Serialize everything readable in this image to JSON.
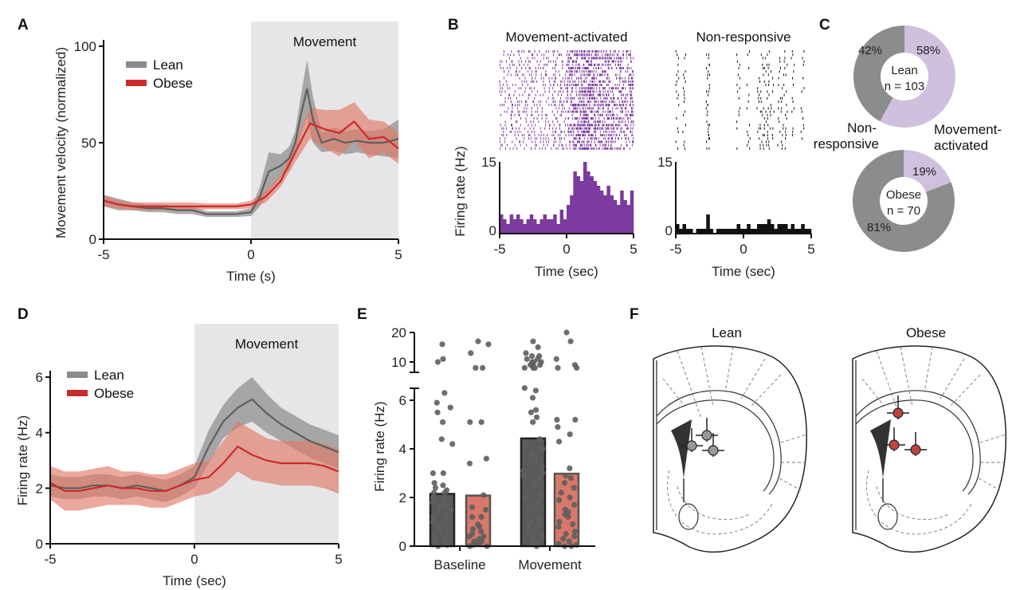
{
  "colors": {
    "lean": "#5f5f5f",
    "lean_band": "#8a8a8a",
    "obese": "#cc2a2a",
    "obese_band": "#e07a66",
    "movement_shade": "#e6e6e8",
    "purple": "#7b3a9e",
    "light_purple": "#cfc0dd",
    "nonresp_gray": "#8c8c8c",
    "lean_bar": "#5a5a5a",
    "obese_bar": "#d9786a"
  },
  "panels": {
    "A": "A",
    "B": "B",
    "C": "C",
    "D": "D",
    "E": "E",
    "F": "F"
  },
  "chart_data": [
    {
      "id": "A",
      "type": "line",
      "shaded_region": {
        "label": "Movement",
        "x": [
          0,
          5
        ]
      },
      "xlabel": "Time (s)",
      "ylabel": "Movement velocity (normalized)",
      "xlim": [
        -5,
        5
      ],
      "ylim": [
        0,
        100
      ],
      "xticks": [
        "-5",
        "0",
        "5"
      ],
      "yticks": [
        "0",
        "50",
        "100"
      ],
      "legend_placement": "top-left",
      "grid": false,
      "series": [
        {
          "name": "Lean",
          "x": [
            -5,
            -4.5,
            -4,
            -3.5,
            -3,
            -2.5,
            -2,
            -1.5,
            -1,
            -0.5,
            0,
            0.3,
            0.6,
            1,
            1.3,
            1.5,
            1.7,
            1.9,
            2.1,
            2.4,
            2.8,
            3.2,
            3.6,
            4,
            4.5,
            5
          ],
          "y": [
            20,
            18,
            17,
            16,
            16,
            15,
            15,
            13,
            13,
            13,
            14,
            22,
            35,
            38,
            42,
            50,
            65,
            78,
            62,
            50,
            52,
            50,
            51,
            50,
            50,
            52
          ],
          "err": [
            3,
            3,
            2,
            2,
            2,
            2,
            2,
            1.5,
            1.5,
            1.5,
            2,
            5,
            10,
            6,
            6,
            6,
            10,
            15,
            12,
            5,
            6,
            6,
            6,
            6,
            7,
            10
          ]
        },
        {
          "name": "Obese",
          "x": [
            -5,
            -4.5,
            -4,
            -3.5,
            -3,
            -2.5,
            -2,
            -1.5,
            -1,
            -0.5,
            0,
            0.5,
            1,
            1.5,
            2,
            2.5,
            3,
            3.5,
            4,
            4.5,
            5
          ],
          "y": [
            20,
            18,
            17,
            17,
            17,
            17,
            17,
            17,
            17,
            17,
            18,
            22,
            30,
            45,
            60,
            57,
            55,
            61,
            52,
            53,
            47
          ],
          "err": [
            3,
            2,
            2,
            2,
            2,
            2,
            2,
            1.5,
            1.5,
            1.5,
            2,
            3,
            3,
            5,
            8,
            10,
            12,
            10,
            10,
            8,
            8
          ]
        }
      ]
    },
    {
      "id": "B",
      "type": "bar",
      "ylabel": "Firing rate (Hz)",
      "xlabel": "Time (sec)",
      "xlim": [
        -5,
        5
      ],
      "ylim": [
        0,
        15
      ],
      "xticks": [
        "-5",
        "0",
        "5"
      ],
      "yticks": [
        "0",
        "15"
      ],
      "bin_width": 0.25,
      "units": [
        {
          "title": "Movement-activated",
          "values": [
            4,
            3,
            2,
            4,
            3,
            4,
            3,
            2,
            3,
            4,
            3,
            2,
            3,
            4,
            3,
            3,
            4,
            2,
            5,
            3,
            6,
            8,
            13,
            12,
            11,
            15,
            13,
            12,
            11,
            10,
            9,
            8,
            10,
            8,
            7,
            6,
            9,
            7,
            6,
            9
          ]
        },
        {
          "title": "Non-responsive",
          "values": [
            2,
            1,
            2,
            1,
            1,
            0,
            1,
            1,
            1,
            4,
            1,
            0,
            1,
            1,
            1,
            1,
            1,
            1,
            2,
            1,
            1,
            2,
            1,
            1,
            2,
            2,
            2,
            3,
            2,
            1,
            2,
            2,
            2,
            1,
            2,
            1,
            1,
            2,
            1,
            1
          ]
        }
      ]
    },
    {
      "id": "C",
      "type": "pie",
      "categories": [
        "Non-responsive",
        "Movement-activated"
      ],
      "category_labels": {
        "nonresp_1": "Non-",
        "nonresp_2": "responsive",
        "move_1": "Movement-",
        "move_2": "activated"
      },
      "groups": [
        {
          "name": "Lean",
          "n_label": "n = 103",
          "values": [
            42,
            58
          ],
          "labels": [
            "42%",
            "58%"
          ]
        },
        {
          "name": "Obese",
          "n_label": "n = 70",
          "values": [
            81,
            19
          ],
          "labels": [
            "81%",
            "19%"
          ]
        }
      ]
    },
    {
      "id": "D",
      "type": "line",
      "shaded_region": {
        "label": "Movement",
        "x": [
          0,
          5
        ]
      },
      "xlabel": "Time (sec)",
      "ylabel": "Firing rate (Hz)",
      "xlim": [
        -5,
        5
      ],
      "ylim": [
        0,
        6.5
      ],
      "xticks": [
        "-5",
        "0",
        "5"
      ],
      "yticks": [
        "0",
        "2",
        "4",
        "6"
      ],
      "legend_placement": "top-left",
      "grid": false,
      "series": [
        {
          "name": "Lean",
          "x": [
            -5,
            -4.5,
            -4,
            -3.5,
            -3,
            -2.5,
            -2,
            -1.5,
            -1,
            -0.5,
            0,
            0.5,
            1,
            1.5,
            2,
            2.5,
            3,
            3.5,
            4,
            4.5,
            5
          ],
          "y": [
            2.1,
            2.0,
            2.0,
            2.1,
            2.1,
            2.0,
            2.1,
            2.0,
            1.9,
            2.1,
            2.4,
            3.5,
            4.4,
            4.9,
            5.2,
            4.7,
            4.3,
            4.0,
            3.7,
            3.5,
            3.3
          ],
          "err": [
            0.4,
            0.4,
            0.4,
            0.4,
            0.4,
            0.4,
            0.4,
            0.4,
            0.4,
            0.4,
            0.4,
            0.6,
            0.6,
            0.7,
            0.8,
            0.7,
            0.6,
            0.6,
            0.6,
            0.6,
            0.6
          ]
        },
        {
          "name": "Obese",
          "x": [
            -5,
            -4.5,
            -4,
            -3.5,
            -3,
            -2.5,
            -2,
            -1.5,
            -1,
            -0.5,
            0,
            0.5,
            1,
            1.5,
            2,
            2.5,
            3,
            3.5,
            4,
            4.5,
            5
          ],
          "y": [
            2.2,
            1.9,
            1.9,
            2.0,
            2.1,
            2.0,
            2.0,
            1.9,
            1.9,
            2.1,
            2.3,
            2.4,
            2.9,
            3.5,
            3.2,
            3.0,
            2.9,
            2.9,
            2.9,
            2.8,
            2.6
          ],
          "err": [
            0.6,
            0.7,
            0.7,
            0.7,
            0.7,
            0.6,
            0.6,
            0.6,
            0.6,
            0.6,
            0.6,
            0.6,
            0.8,
            0.9,
            0.9,
            0.8,
            0.8,
            0.8,
            0.8,
            0.8,
            0.8
          ]
        }
      ]
    },
    {
      "id": "E",
      "type": "bar",
      "ylabel": "Firing rate (Hz)",
      "categories": [
        "Baseline",
        "Movement"
      ],
      "y_axis_break": [
        6.5,
        8
      ],
      "yticks": [
        "0",
        "2",
        "4",
        "6",
        "10",
        "20"
      ],
      "series": [
        {
          "name": "Lean",
          "values": [
            2.15,
            4.43
          ],
          "points": [
            [
              16,
              11,
              10,
              6.3,
              5.9,
              5.7,
              5.5,
              5.1,
              4.4,
              4.2,
              3.0,
              3.0,
              2.6,
              2.5,
              2.4,
              2.3,
              2.2,
              2.2,
              2.0,
              1.9,
              1.8,
              1.7,
              1.6,
              1.5,
              1.4,
              1.3,
              1.2,
              1.1,
              1.0,
              0.9,
              0.8,
              0.7,
              0.6,
              0.5,
              0.4,
              0.3,
              0.3,
              0.2,
              0.2,
              0.1,
              0.1,
              0.05,
              0
            ],
            [
              17,
              15,
              13,
              12,
              12,
              11,
              11,
              10,
              10,
              10,
              9,
              9,
              9,
              8,
              8,
              8,
              6.5,
              6.4,
              6.1,
              5.6,
              5.5,
              5.3,
              5.1,
              4.4,
              4.2,
              4.0,
              3.8,
              3.6,
              3.5,
              3.3,
              3.1,
              3.0,
              2.9,
              2.8,
              2.7,
              2.5,
              2.3,
              2.1,
              2.0,
              1.8,
              1.6,
              1.5,
              1.3,
              1.1,
              1.0,
              0.9,
              0.8,
              0.6,
              0.5,
              0.4,
              0.3,
              0.2,
              0.1,
              0
            ]
          ]
        },
        {
          "name": "Obese",
          "values": [
            2.08,
            2.98
          ],
          "points": [
            [
              17,
              16,
              13,
              8,
              8,
              5.1,
              5.1,
              3.6,
              3.4,
              2.1,
              1.6,
              1.5,
              1.2,
              1.2,
              0.9,
              0.8,
              0.7,
              0.6,
              0.5,
              0.4,
              0.4,
              0.3,
              0.2,
              0.2,
              0.1,
              0.1,
              0.05,
              0,
              0
            ],
            [
              20,
              17,
              11,
              9,
              8,
              8,
              5.2,
              5.2,
              4.9,
              4.6,
              4.3,
              3.2,
              2.9,
              2.8,
              2.6,
              2.4,
              2.2,
              2.0,
              1.9,
              1.7,
              1.5,
              1.4,
              1.3,
              1.2,
              1.0,
              0.9,
              0.8,
              0.6,
              0.5,
              0.4,
              0.3,
              0.2,
              0.1,
              0.05,
              0,
              0
            ]
          ]
        }
      ]
    }
  ],
  "panelF": {
    "titles": [
      "Lean",
      "Obese"
    ]
  }
}
